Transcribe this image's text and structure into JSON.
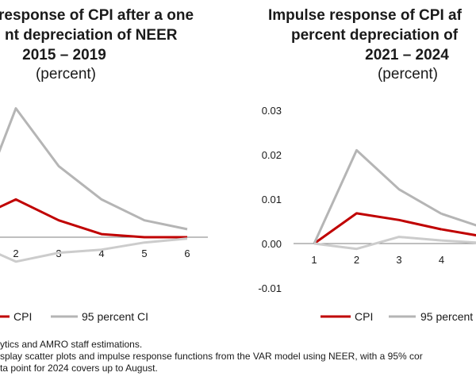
{
  "chart_data": [
    {
      "type": "line",
      "title_lines": [
        "response of CPI after a one",
        "nt depreciation of NEER",
        "2015 – 2019"
      ],
      "subtitle": "(percent)",
      "categories": [
        "2",
        "3",
        "4",
        "5",
        "6"
      ],
      "series": [
        {
          "name": "CPI",
          "color": "#c00000",
          "values": [
            0.0085,
            0.0038,
            0.0007,
            0.0,
            0.0
          ]
        },
        {
          "name": "95 percent CI",
          "role": "upper",
          "color": "#b5b5b5",
          "values": [
            0.029,
            0.016,
            0.0085,
            0.0038,
            0.0018
          ]
        },
        {
          "name": "95 percent CI",
          "role": "lower",
          "color": "#cccccc",
          "values": [
            -0.0055,
            -0.0035,
            -0.0028,
            -0.0012,
            -0.0003
          ]
        }
      ],
      "legend": [
        "CPI",
        "95 percent CI"
      ],
      "legend_position": "bottom"
    },
    {
      "type": "line",
      "title_lines": [
        "Impulse response of CPI af",
        "percent depreciation of",
        "2021 – 2024"
      ],
      "subtitle": "(percent)",
      "categories": [
        "1",
        "2",
        "3",
        "4"
      ],
      "yticks": [
        "0.03",
        "0.02",
        "0.01",
        "0.00",
        "-0.01"
      ],
      "ylim": [
        -0.01,
        0.03
      ],
      "series": [
        {
          "name": "CPI",
          "color": "#c00000",
          "values": [
            0.0,
            0.0068,
            0.0053,
            0.0032
          ]
        },
        {
          "name": "95 percent CI",
          "role": "upper",
          "color": "#b5b5b5",
          "values": [
            0.0,
            0.021,
            0.0122,
            0.0067
          ]
        },
        {
          "name": "95 percent CI",
          "role": "lower",
          "color": "#cccccc",
          "values": [
            0.0,
            -0.0012,
            0.0015,
            0.0007
          ]
        }
      ],
      "legend": [
        "CPI",
        "95 percent"
      ],
      "legend_position": "bottom"
    }
  ],
  "footnotes": [
    "ytics and AMRO staff estimations.",
    "splay scatter plots and impulse response functions from the VAR model using NEER, with a 95% cor",
    "ta point for 2024 covers up to August."
  ]
}
